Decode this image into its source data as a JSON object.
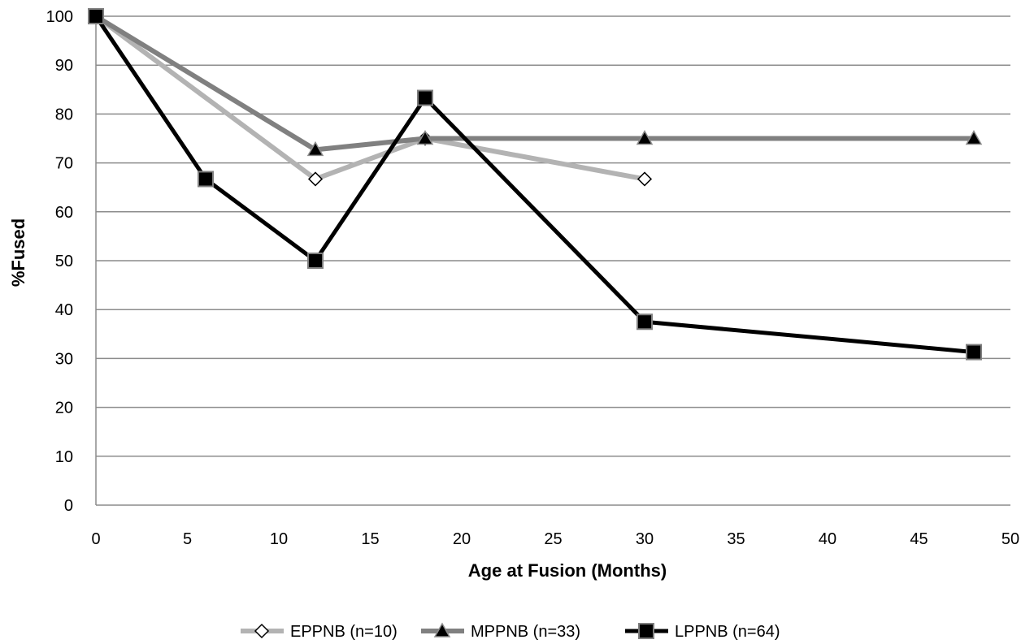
{
  "chart_data": {
    "type": "line",
    "title": "",
    "xlabel": "Age at Fusion  (Months)",
    "ylabel": "%Fused",
    "xlim": [
      0,
      50
    ],
    "ylim": [
      0,
      100
    ],
    "xticks": [
      0,
      5,
      10,
      15,
      20,
      25,
      30,
      35,
      40,
      45,
      50
    ],
    "yticks": [
      0,
      10,
      20,
      30,
      40,
      50,
      60,
      70,
      80,
      90,
      100
    ],
    "grid": "horizontal",
    "legend_position": "bottom",
    "series": [
      {
        "name": "EPPNB (n=10)",
        "color": "#b3b3b3",
        "marker": "diamond-open",
        "points": [
          [
            0,
            100
          ],
          [
            12,
            66.7
          ],
          [
            18,
            75
          ],
          [
            30,
            66.7
          ]
        ]
      },
      {
        "name": "MPPNB (n=33)",
        "color": "#808080",
        "marker": "triangle",
        "points": [
          [
            0,
            100
          ],
          [
            12,
            72.7
          ],
          [
            18,
            75
          ],
          [
            30,
            75
          ],
          [
            48,
            75
          ]
        ]
      },
      {
        "name": "LPPNB (n=64)",
        "color": "#000000",
        "marker": "square",
        "points": [
          [
            0,
            100
          ],
          [
            6,
            66.7
          ],
          [
            12,
            50
          ],
          [
            18,
            83.3
          ],
          [
            30,
            37.5
          ],
          [
            48,
            31.3
          ]
        ]
      }
    ]
  }
}
